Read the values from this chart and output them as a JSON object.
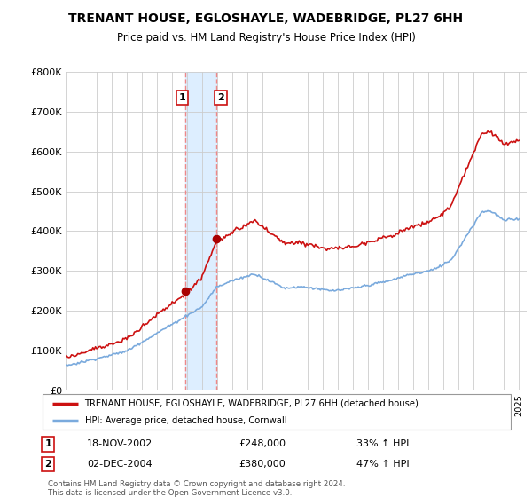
{
  "title": "TRENANT HOUSE, EGLOSHAYLE, WADEBRIDGE, PL27 6HH",
  "subtitle": "Price paid vs. HM Land Registry's House Price Index (HPI)",
  "ylim": [
    0,
    800000
  ],
  "yticks": [
    0,
    100000,
    200000,
    300000,
    400000,
    500000,
    600000,
    700000,
    800000
  ],
  "ytick_labels": [
    "£0",
    "£100K",
    "£200K",
    "£300K",
    "£400K",
    "£500K",
    "£600K",
    "£700K",
    "£800K"
  ],
  "sale1_date": 2002.88,
  "sale1_price": 248000,
  "sale2_date": 2004.92,
  "sale2_price": 380000,
  "sale1_text": "18-NOV-2002",
  "sale1_amount": "£248,000",
  "sale1_hpi": "33% ↑ HPI",
  "sale2_text": "02-DEC-2004",
  "sale2_amount": "£380,000",
  "sale2_hpi": "47% ↑ HPI",
  "hpi_line_color": "#7aaadd",
  "price_line_color": "#cc1111",
  "sale_marker_color": "#aa0000",
  "vline_color": "#ee8888",
  "highlight_color": "#ddeeff",
  "legend_label1": "TRENANT HOUSE, EGLOSHAYLE, WADEBRIDGE, PL27 6HH (detached house)",
  "legend_label2": "HPI: Average price, detached house, Cornwall",
  "footnote": "Contains HM Land Registry data © Crown copyright and database right 2024.\nThis data is licensed under the Open Government Licence v3.0.",
  "xlim_start": 1995.0,
  "xlim_end": 2025.5
}
